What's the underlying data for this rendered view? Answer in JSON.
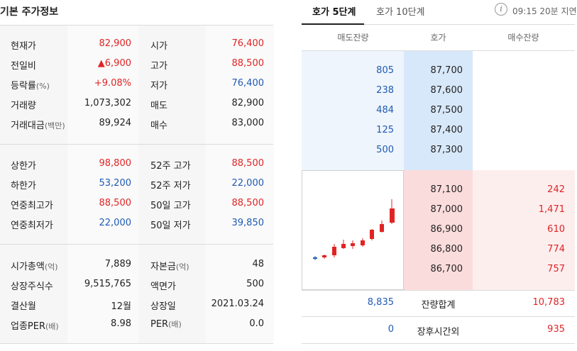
{
  "basic": {
    "title": "기본 주가정보",
    "rows1": [
      {
        "l1": "현재가",
        "v1": "82,900",
        "c1": "red",
        "l2": "시가",
        "v2": "76,400",
        "c2": "red"
      },
      {
        "l1": "전일비",
        "v1": "▲6,900",
        "c1": "red",
        "l2": "고가",
        "v2": "88,500",
        "c2": "red"
      },
      {
        "l1": "등락률",
        "l1s": "(%)",
        "v1": "+9.08%",
        "c1": "red",
        "l2": "저가",
        "v2": "76,400",
        "c2": "blue"
      },
      {
        "l1": "거래량",
        "v1": "1,073,302",
        "c1": "dark",
        "l2": "매도",
        "v2": "82,900",
        "c2": "dark"
      },
      {
        "l1": "거래대금",
        "l1s": "(백만)",
        "v1": "89,924",
        "c1": "dark",
        "l2": "매수",
        "v2": "83,000",
        "c2": "dark"
      }
    ],
    "rows2": [
      {
        "l1": "상한가",
        "v1": "98,800",
        "c1": "red",
        "l2": "52주 고가",
        "v2": "88,500",
        "c2": "red"
      },
      {
        "l1": "하한가",
        "v1": "53,200",
        "c1": "blue",
        "l2": "52주 저가",
        "v2": "22,000",
        "c2": "blue"
      },
      {
        "l1": "연중최고가",
        "v1": "88,500",
        "c1": "red",
        "l2": "50일 고가",
        "v2": "88,500",
        "c2": "red"
      },
      {
        "l1": "연중최저가",
        "v1": "22,000",
        "c1": "blue",
        "l2": "50일 저가",
        "v2": "39,850",
        "c2": "blue"
      }
    ],
    "rows3": [
      {
        "l1": "시가총액",
        "l1s": "(억)",
        "v1": "7,889",
        "c1": "dark",
        "l2": "자본금",
        "l2s": "(억)",
        "v2": "48",
        "c2": "dark"
      },
      {
        "l1": "상장주식수",
        "v1": "9,515,765",
        "c1": "dark",
        "l2": "액면가",
        "v2": "500",
        "c2": "dark"
      },
      {
        "l1": "결산월",
        "v1": "12월",
        "c1": "dark",
        "l2": "상장일",
        "v2": "2021.03.24",
        "c2": "dark"
      },
      {
        "l1": "업종PER",
        "l1s": "(배)",
        "v1": "8.98",
        "c1": "dark",
        "l2": "PER",
        "l2s": "(배)",
        "v2": "0.0",
        "c2": "dark"
      }
    ]
  },
  "orderbook": {
    "tabs": [
      "호가 5단계",
      "호가 10단계"
    ],
    "info_icon": "i",
    "time_text": "09:15 20분 지연",
    "headers": [
      "매도잔량",
      "호가",
      "매수잔량"
    ],
    "sell": [
      {
        "qty": "805",
        "price": "87,700"
      },
      {
        "qty": "238",
        "price": "87,600"
      },
      {
        "qty": "484",
        "price": "87,500"
      },
      {
        "qty": "125",
        "price": "87,400"
      },
      {
        "qty": "500",
        "price": "87,300"
      }
    ],
    "buy": [
      {
        "price": "87,100",
        "qty": "242"
      },
      {
        "price": "87,000",
        "qty": "1,471"
      },
      {
        "price": "86,900",
        "qty": "610"
      },
      {
        "price": "86,800",
        "qty": "774"
      },
      {
        "price": "86,700",
        "qty": "757"
      }
    ],
    "summary": [
      {
        "left": "8,835",
        "label": "잔량합계",
        "right": "10,783"
      },
      {
        "left": "0",
        "label": "장후시간외",
        "right": "935"
      }
    ]
  },
  "colors": {
    "red": "#e02424",
    "blue": "#1f5ab3",
    "sell_bg": "#eef5fc",
    "buy_bg": "#fdeeee"
  }
}
